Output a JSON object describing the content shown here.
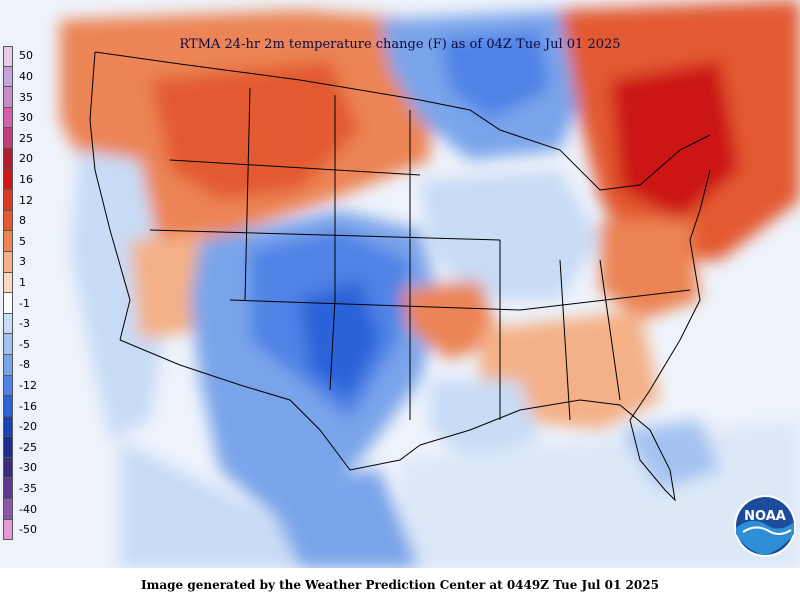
{
  "map": {
    "title": "RTMA 24-hr 2m temperature change (F) as of 04Z  Tue Jul 01 2025"
  },
  "legend": {
    "labels": [
      "50",
      "40",
      "35",
      "30",
      "25",
      "20",
      "16",
      "12",
      "8",
      "5",
      "3",
      "1",
      "-1",
      "-3",
      "-5",
      "-8",
      "-12",
      "-16",
      "-20",
      "-25",
      "-30",
      "-35",
      "-40",
      "-50"
    ],
    "colors": [
      "#e4cde8",
      "#c6a3d8",
      "#c98cc8",
      "#d55fa8",
      "#bf3f7a",
      "#b01d2e",
      "#cc1818",
      "#d83a22",
      "#e35a32",
      "#ec8454",
      "#f4b086",
      "#fad7bf",
      "#ffffff",
      "#c8dcf6",
      "#a4c2f0",
      "#7aa4ea",
      "#4f83e6",
      "#2b62d8",
      "#1c43b4",
      "#1b2e8a",
      "#3b2b7a",
      "#5d3a8c",
      "#8a5aa6",
      "#e69ad8"
    ]
  },
  "logo": {
    "text": "NOAA"
  },
  "footer": {
    "text": "Image generated by the Weather Prediction Center at 0449Z Tue Jul 01 2025"
  }
}
